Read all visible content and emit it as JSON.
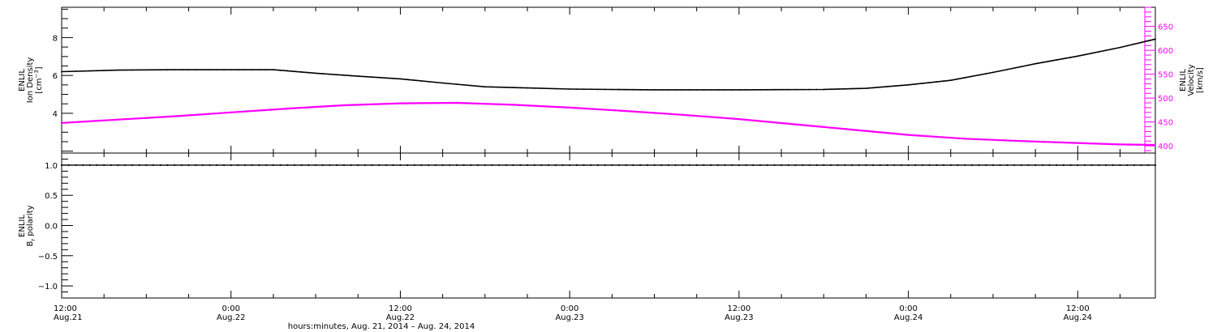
{
  "colors": {
    "density": "#000000",
    "velocity": "#ff00ff",
    "polarity": "#000000"
  },
  "x_axis_title": "hours:minutes, Aug. 21, 2014 – Aug. 24, 2014",
  "time_ticks": [
    {
      "h": 0,
      "line1": "12:00",
      "line2": "Aug.21"
    },
    {
      "h": 12,
      "line1": "0:00",
      "line2": "Aug.22"
    },
    {
      "h": 24,
      "line1": "12:00",
      "line2": "Aug.22"
    },
    {
      "h": 36,
      "line1": "0:00",
      "line2": "Aug.23"
    },
    {
      "h": 48,
      "line1": "12:00",
      "line2": "Aug.23"
    },
    {
      "h": 60,
      "line1": "0:00",
      "line2": "Aug.24"
    },
    {
      "h": 72,
      "line1": "12:00",
      "line2": "Aug.24"
    }
  ],
  "chart_data": [
    {
      "type": "line",
      "x_unit": "hours since 12:00 Aug. 21, 2014",
      "x_range": [
        0,
        77.5
      ],
      "left_axis": {
        "title_line1": "ENLIL",
        "title_line2": "Ion Density",
        "title_line3": "[cm",
        "title_sup": "−3",
        "title_close": "]",
        "ylim": [
          1.9,
          9.6
        ],
        "ticks": [
          "4",
          "6",
          "8"
        ],
        "tick_values": [
          4,
          6,
          8
        ]
      },
      "right_axis": {
        "title_line1": "ENLIL",
        "title_line2": "Velocity",
        "title_line3": "[km/s]",
        "ylim": [
          385,
          690
        ],
        "ticks": [
          "400",
          "450",
          "500",
          "550",
          "600",
          "650"
        ],
        "tick_values": [
          400,
          450,
          500,
          550,
          600,
          650
        ]
      },
      "series": [
        {
          "axis": "left",
          "points": [
            [
              0,
              6.2
            ],
            [
              4,
              6.28
            ],
            [
              8,
              6.3
            ],
            [
              12,
              6.3
            ],
            [
              15,
              6.3
            ],
            [
              18,
              6.12
            ],
            [
              21,
              5.96
            ],
            [
              24,
              5.82
            ],
            [
              27,
              5.6
            ],
            [
              30,
              5.4
            ],
            [
              33,
              5.34
            ],
            [
              36,
              5.28
            ],
            [
              39,
              5.26
            ],
            [
              42,
              5.24
            ],
            [
              45,
              5.24
            ],
            [
              48,
              5.24
            ],
            [
              51,
              5.25
            ],
            [
              54,
              5.26
            ],
            [
              57,
              5.32
            ],
            [
              60,
              5.5
            ],
            [
              63,
              5.74
            ],
            [
              66,
              6.16
            ],
            [
              69,
              6.62
            ],
            [
              72,
              7.02
            ],
            [
              75,
              7.48
            ],
            [
              77.5,
              7.92
            ]
          ]
        },
        {
          "axis": "right",
          "points": [
            [
              0,
              448
            ],
            [
              4,
              455
            ],
            [
              8,
              462
            ],
            [
              12,
              470
            ],
            [
              16,
              478
            ],
            [
              20,
              485
            ],
            [
              24,
              489
            ],
            [
              28,
              490
            ],
            [
              32,
              486
            ],
            [
              36,
              480
            ],
            [
              40,
              473
            ],
            [
              44,
              465
            ],
            [
              48,
              456
            ],
            [
              52,
              445
            ],
            [
              56,
              434
            ],
            [
              60,
              423
            ],
            [
              64,
              415
            ],
            [
              68,
              410
            ],
            [
              72,
              406
            ],
            [
              75,
              403
            ],
            [
              77.5,
              402
            ]
          ]
        }
      ]
    },
    {
      "type": "scatter",
      "x_unit": "hours since 12:00 Aug. 21, 2014",
      "x_range": [
        0,
        77.5
      ],
      "left_axis": {
        "title_line1": "ENLIL",
        "title_line2": "B",
        "title_sub": "r",
        "title_rest": " polarity",
        "ylim": [
          -1.2,
          1.2
        ],
        "ticks": [
          "−1.0",
          "−0.5",
          "0.0",
          "0.5",
          "1.0"
        ],
        "tick_values": [
          -1.0,
          -0.5,
          0.0,
          0.5,
          1.0
        ]
      },
      "series": [
        {
          "axis": "left",
          "constant_value": 1.0
        }
      ]
    }
  ]
}
